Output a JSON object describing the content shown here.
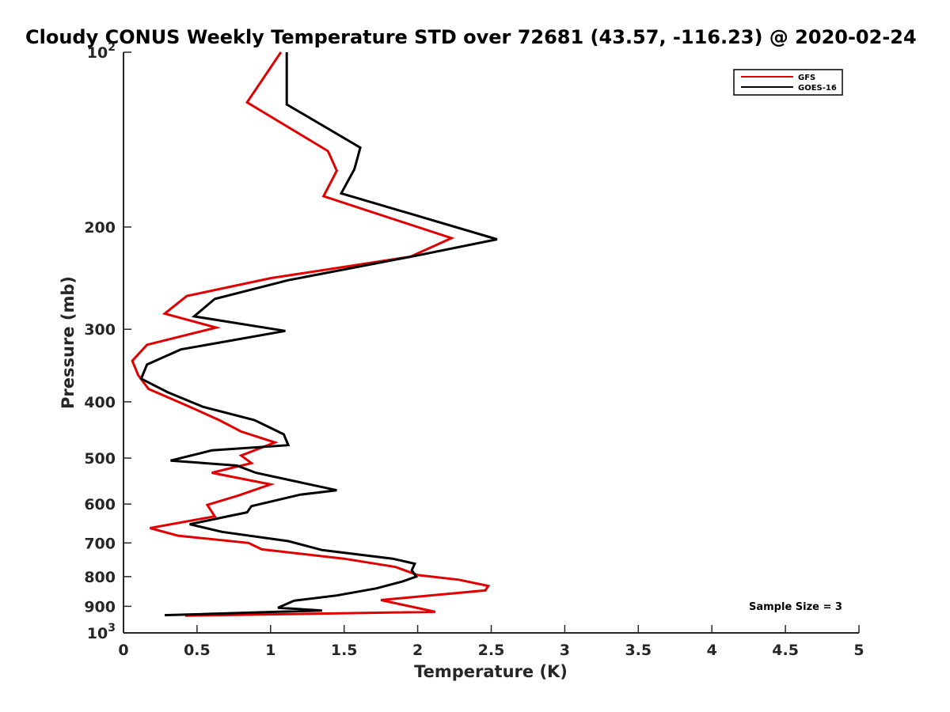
{
  "chart_data": {
    "type": "line",
    "title": "Cloudy CONUS Weekly Temperature STD over 72681 (43.57, -116.23) @ 2020-02-24",
    "xlabel": "Temperature (K)",
    "ylabel": "Pressure (mb)",
    "xlim": [
      0,
      5
    ],
    "ylim": [
      100,
      1000
    ],
    "y_scale": "log",
    "y_reversed": true,
    "grid": false,
    "legend_position": "top-right",
    "x_ticks": [
      0,
      0.5,
      1,
      1.5,
      2,
      2.5,
      3,
      3.5,
      4,
      4.5,
      5
    ],
    "x_tick_labels": [
      "0",
      "0.5",
      "1",
      "1.5",
      "2",
      "2.5",
      "3",
      "3.5",
      "4",
      "4.5",
      "5"
    ],
    "y_ticks": [
      {
        "value": 100,
        "base": "10",
        "exp": "2"
      },
      {
        "value": 200,
        "label": "200"
      },
      {
        "value": 300,
        "label": "300"
      },
      {
        "value": 400,
        "label": "400"
      },
      {
        "value": 500,
        "label": "500"
      },
      {
        "value": 600,
        "label": "600"
      },
      {
        "value": 700,
        "label": "700"
      },
      {
        "value": 800,
        "label": "800"
      },
      {
        "value": 900,
        "label": "900"
      },
      {
        "value": 1000,
        "base": "10",
        "exp": "3"
      }
    ],
    "annotation": "Sample Size = 3",
    "series": [
      {
        "name": "GFS",
        "color": "#e00000",
        "x": [
          1.07,
          0.84,
          1.39,
          1.45,
          1.36,
          2.23,
          1.95,
          1.0,
          0.43,
          0.28,
          0.63,
          0.16,
          0.06,
          0.1,
          0.17,
          0.45,
          0.65,
          0.8,
          1.03,
          0.8,
          0.87,
          0.6,
          1.0,
          0.78,
          0.57,
          0.62,
          0.18,
          0.37,
          0.85,
          0.94,
          1.5,
          1.85,
          2.0,
          2.28,
          2.48,
          2.46,
          1.75,
          2.12,
          0.42
        ],
        "y": [
          100,
          122,
          148,
          160,
          177,
          209,
          225,
          245,
          263,
          282,
          298,
          319,
          340,
          360,
          380,
          408,
          430,
          450,
          470,
          495,
          510,
          530,
          555,
          580,
          602,
          630,
          660,
          680,
          700,
          718,
          745,
          770,
          795,
          810,
          830,
          845,
          878,
          920,
          934
        ]
      },
      {
        "name": "GOES-16",
        "color": "#000000",
        "x": [
          1.11,
          1.11,
          1.61,
          1.57,
          1.48,
          2.54,
          2.03,
          1.12,
          0.62,
          0.48,
          1.1,
          0.39,
          0.16,
          0.12,
          0.3,
          0.54,
          0.89,
          1.09,
          1.12,
          0.6,
          0.32,
          0.77,
          0.9,
          1.45,
          1.2,
          0.87,
          0.84,
          0.45,
          0.67,
          1.12,
          1.35,
          1.83,
          1.98,
          1.96,
          1.99,
          1.9,
          1.72,
          1.45,
          1.16,
          1.05,
          1.35,
          0.28
        ],
        "y": [
          100,
          123,
          146,
          159,
          175,
          210,
          223,
          247,
          266,
          285,
          302,
          325,
          345,
          365,
          385,
          408,
          430,
          455,
          475,
          485,
          505,
          515,
          530,
          568,
          578,
          605,
          620,
          650,
          670,
          695,
          720,
          745,
          760,
          780,
          800,
          815,
          838,
          862,
          880,
          905,
          915,
          932
        ]
      }
    ]
  }
}
